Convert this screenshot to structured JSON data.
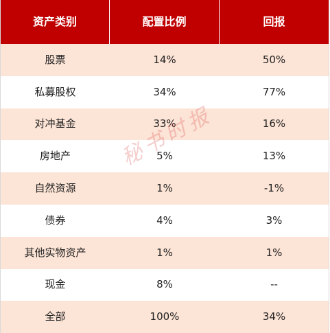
{
  "table": {
    "headers": [
      "资产类别",
      "配置比例",
      "回报"
    ],
    "rows": [
      {
        "category": "股票",
        "allocation": "14%",
        "return": "50%"
      },
      {
        "category": "私募股权",
        "allocation": "34%",
        "return": "77%"
      },
      {
        "category": "对冲基金",
        "allocation": "33%",
        "return": "16%"
      },
      {
        "category": "房地产",
        "allocation": "5%",
        "return": "13%"
      },
      {
        "category": "自然资源",
        "allocation": "1%",
        "return": "-1%"
      },
      {
        "category": "债券",
        "allocation": "4%",
        "return": "3%"
      },
      {
        "category": "其他实物资产",
        "allocation": "1%",
        "return": "1%"
      },
      {
        "category": "现金",
        "allocation": "8%",
        "return": "--"
      },
      {
        "category": "全部",
        "allocation": "100%",
        "return": "34%"
      }
    ]
  },
  "colors": {
    "header_background": "#c00000",
    "shaded_row": "#fce4d6",
    "plain_row": "#ffffff",
    "watermark": "#dc5050"
  },
  "watermark": {
    "text": "秘书时报"
  }
}
